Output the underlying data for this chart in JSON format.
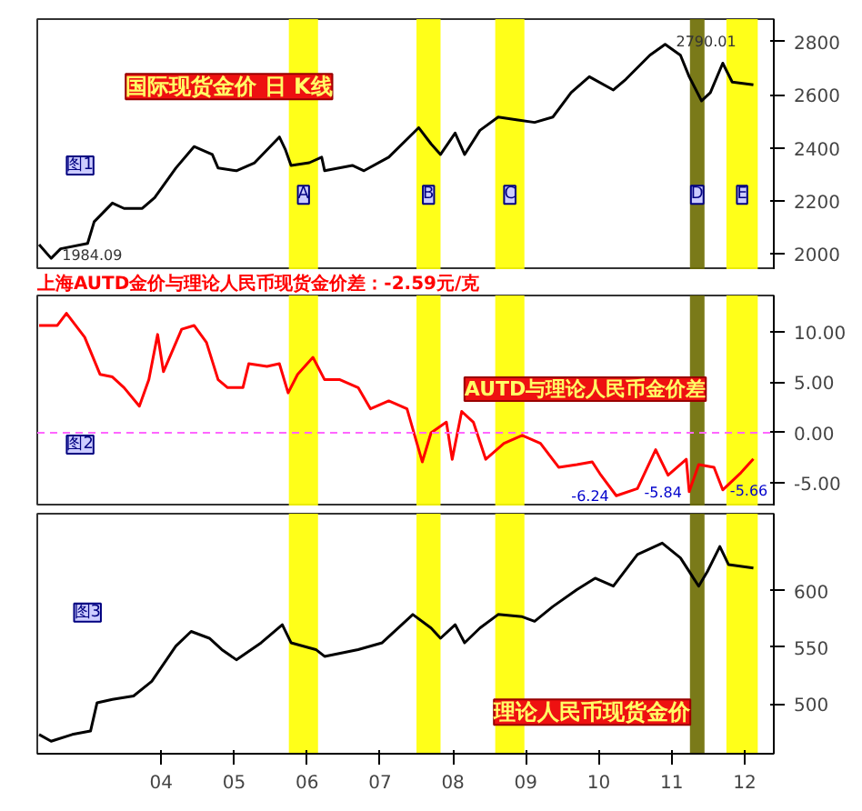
{
  "chart_data": [
    {
      "type": "line",
      "title": "国际现货金价 日 K线",
      "annotations": [
        "图1",
        {
          "text": "1984.09",
          "x": 2.49,
          "y": 1984.09
        },
        {
          "text": "2790.01",
          "x": 10.91,
          "y": 2790.01
        }
      ],
      "x": [
        2.325,
        2.49,
        2.62,
        2.99,
        3.08,
        3.33,
        3.49,
        3.74,
        3.91,
        4.2,
        4.45,
        4.62,
        4.7,
        4.78,
        5.03,
        5.28,
        5.62,
        5.7,
        5.78,
        6.03,
        6.2,
        6.24,
        6.62,
        6.78,
        7.12,
        7.53,
        7.7,
        7.83,
        8.03,
        8.16,
        8.37,
        8.62,
        8.87,
        9.12,
        9.37,
        9.62,
        9.87,
        10.2,
        10.37,
        10.7,
        10.91,
        11.12,
        11.24,
        11.41,
        11.53,
        11.7,
        11.83,
        12.12
      ],
      "series": [
        {
          "color": "#000000",
          "values": [
            2036,
            1984.09,
            2020,
            2040,
            2122,
            2192,
            2172,
            2172,
            2213,
            2324,
            2405,
            2385,
            2375,
            2324,
            2314,
            2344,
            2441,
            2395,
            2334,
            2344,
            2365,
            2314,
            2334,
            2314,
            2365,
            2476,
            2415,
            2375,
            2456,
            2375,
            2466,
            2516,
            2506,
            2496,
            2516,
            2608,
            2668,
            2618,
            2658,
            2749,
            2790.01,
            2749,
            2668,
            2577,
            2608,
            2719,
            2648,
            2638
          ]
        }
      ],
      "xlim": [
        2.3,
        12.4
      ],
      "ylim": [
        1940,
        2885
      ],
      "yticks": [
        2000,
        2200,
        2400,
        2600,
        2800
      ],
      "tick_labels": "y",
      "grid": false,
      "bands": [
        {
          "axis": "x",
          "from": 5.75,
          "to": 6.15,
          "label": "A",
          "color": "#ffff00"
        },
        {
          "axis": "x",
          "from": 7.5,
          "to": 7.83,
          "label": "B",
          "color": "#ffff00"
        },
        {
          "axis": "x",
          "from": 8.58,
          "to": 8.98,
          "label": "C",
          "color": "#ffff00"
        },
        {
          "axis": "x",
          "from": 11.25,
          "to": 11.45,
          "label": "D",
          "color": "#6b6b00"
        },
        {
          "axis": "x",
          "from": 11.75,
          "to": 12.18,
          "label": "E",
          "color": "#ffff00"
        }
      ]
    },
    {
      "type": "line",
      "title": "上海AUTD金价与理论人民币现货金价差：-2.59元/克",
      "annotations": [
        "图2",
        "AUTD与理论人民币金价差",
        {
          "text": "-6.24",
          "x": 10.24,
          "y": -6.24
        },
        {
          "text": "-5.84",
          "x": 11.24,
          "y": -5.84
        },
        {
          "text": "-5.66",
          "x": 11.7,
          "y": -5.66
        }
      ],
      "x": [
        2.325,
        2.575,
        2.7,
        2.95,
        3.16,
        3.33,
        3.49,
        3.7,
        3.83,
        3.95,
        4.03,
        4.28,
        4.45,
        4.62,
        4.78,
        4.91,
        5.12,
        5.2,
        5.45,
        5.62,
        5.74,
        5.87,
        6.08,
        6.24,
        6.45,
        6.7,
        6.87,
        7.12,
        7.37,
        7.58,
        7.7,
        7.91,
        7.99,
        8.12,
        8.28,
        8.45,
        8.7,
        8.95,
        9.2,
        9.45,
        9.7,
        9.91,
        10.03,
        10.24,
        10.53,
        10.78,
        10.95,
        11.2,
        11.24,
        11.37,
        11.58,
        11.7,
        11.95,
        12.12
      ],
      "series": [
        {
          "color": "#ff0000",
          "values": [
            10.63,
            10.63,
            11.84,
            9.47,
            5.79,
            5.53,
            4.47,
            2.63,
            5.26,
            9.74,
            6.05,
            10.26,
            10.63,
            8.95,
            5.26,
            4.47,
            4.47,
            6.84,
            6.58,
            6.84,
            3.95,
            5.79,
            7.47,
            5.26,
            5.26,
            4.47,
            2.37,
            3.16,
            2.37,
            -2.89,
            0,
            1.05,
            -2.63,
            2.11,
            1.05,
            -2.63,
            -1.05,
            -0.26,
            -1.05,
            -3.42,
            -3.16,
            -2.89,
            -4.21,
            -6.24,
            -5.53,
            -1.68,
            -4.21,
            -2.63,
            -5.84,
            -3.16,
            -3.42,
            -5.66,
            -3.95,
            -2.59
          ]
        }
      ],
      "xlim": [
        2.3,
        12.4
      ],
      "ylim": [
        -7.3,
        13.6
      ],
      "yticks": [
        {
          "value": -5,
          "label": "-5.00"
        },
        {
          "value": 0,
          "label": "0.00"
        },
        {
          "value": 5,
          "label": "5.00"
        },
        {
          "value": 10,
          "label": "10.00"
        }
      ],
      "tick_labels": "y",
      "grid": false,
      "ref_lines": [
        {
          "axis": "y",
          "value": 0,
          "color": "#ff66ff",
          "line_style": "dashed"
        }
      ],
      "bands": [
        {
          "axis": "x",
          "from": 5.75,
          "to": 6.15,
          "color": "#ffff00"
        },
        {
          "axis": "x",
          "from": 7.5,
          "to": 7.83,
          "color": "#ffff00"
        },
        {
          "axis": "x",
          "from": 8.58,
          "to": 8.98,
          "color": "#ffff00"
        },
        {
          "axis": "x",
          "from": 11.25,
          "to": 11.45,
          "color": "#6b6b00"
        },
        {
          "axis": "x",
          "from": 11.75,
          "to": 12.18,
          "color": "#ffff00"
        }
      ]
    },
    {
      "type": "line",
      "title": "理论人民币现货金价",
      "annotations": [
        "图3"
      ],
      "x": [
        2.325,
        2.49,
        2.78,
        3.03,
        3.12,
        3.33,
        3.62,
        3.87,
        4.2,
        4.41,
        4.66,
        4.83,
        5.03,
        5.37,
        5.66,
        5.78,
        6.12,
        6.24,
        6.7,
        7.03,
        7.45,
        7.7,
        7.83,
        8.03,
        8.16,
        8.37,
        8.62,
        8.95,
        9.12,
        9.37,
        9.7,
        9.95,
        10.2,
        10.53,
        10.87,
        11.12,
        11.37,
        11.49,
        11.66,
        11.78,
        12.12
      ],
      "series": [
        {
          "color": "#000000",
          "values": [
            473,
            467,
            473,
            476,
            501,
            504,
            507,
            520,
            551,
            564,
            558,
            548,
            539,
            554,
            570,
            554,
            548,
            542,
            548,
            554,
            579,
            567,
            558,
            570,
            554,
            567,
            579,
            577,
            573,
            586,
            601,
            611,
            604,
            632,
            642,
            629,
            604,
            617,
            639,
            623,
            620
          ]
        }
      ],
      "xlim": [
        2.3,
        12.4
      ],
      "xticks": [
        {
          "value": 4,
          "label": "04"
        },
        {
          "value": 5,
          "label": "05"
        },
        {
          "value": 6,
          "label": "06"
        },
        {
          "value": 7,
          "label": "07"
        },
        {
          "value": 8,
          "label": "08"
        },
        {
          "value": 9,
          "label": "09"
        },
        {
          "value": 10,
          "label": "10"
        },
        {
          "value": 11,
          "label": "11"
        },
        {
          "value": 12,
          "label": "12"
        }
      ],
      "ylim": [
        456,
        668
      ],
      "yticks": [
        500,
        550,
        600
      ],
      "grid": false,
      "bands": [
        {
          "axis": "x",
          "from": 5.75,
          "to": 6.15,
          "color": "#ffff00"
        },
        {
          "axis": "x",
          "from": 7.5,
          "to": 7.83,
          "color": "#ffff00"
        },
        {
          "axis": "x",
          "from": 8.58,
          "to": 8.98,
          "color": "#ffff00"
        },
        {
          "axis": "x",
          "from": 11.25,
          "to": 11.45,
          "color": "#6b6b00"
        },
        {
          "axis": "x",
          "from": 11.75,
          "to": 12.18,
          "color": "#ffff00"
        }
      ]
    }
  ]
}
